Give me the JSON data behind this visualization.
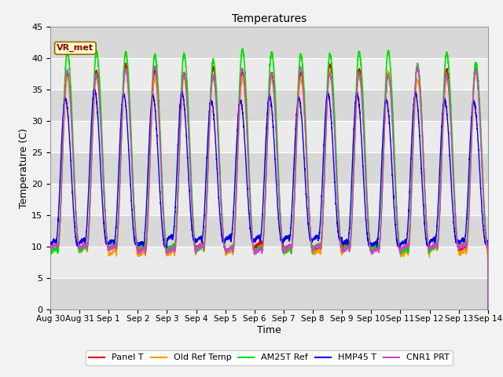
{
  "title": "Temperatures",
  "xlabel": "Time",
  "ylabel": "Temperature (C)",
  "ylim": [
    0,
    45
  ],
  "yticks": [
    0,
    5,
    10,
    15,
    20,
    25,
    30,
    35,
    40,
    45
  ],
  "x_labels": [
    "Aug 30",
    "Aug 31",
    "Sep 1",
    "Sep 2",
    "Sep 3",
    "Sep 4",
    "Sep 5",
    "Sep 6",
    "Sep 7",
    "Sep 8",
    "Sep 9",
    "Sep 10",
    "Sep 11",
    "Sep 12",
    "Sep 13",
    "Sep 14"
  ],
  "annotation": "VR_met",
  "series_colors": {
    "Panel T": "#dd0000",
    "Old Ref Temp": "#ff9900",
    "AM25T Ref": "#00dd00",
    "HMP45 T": "#0000dd",
    "CNR1 PRT": "#cc44cc"
  },
  "series_lw": {
    "Panel T": 1.0,
    "Old Ref Temp": 1.0,
    "AM25T Ref": 1.2,
    "HMP45 T": 1.0,
    "CNR1 PRT": 1.0
  },
  "bg_color_light": "#ebebeb",
  "bg_color_dark": "#d8d8d8",
  "grid_color": "#ffffff",
  "fig_color": "#f2f2f2",
  "n_days": 15,
  "pts_per_day": 288
}
